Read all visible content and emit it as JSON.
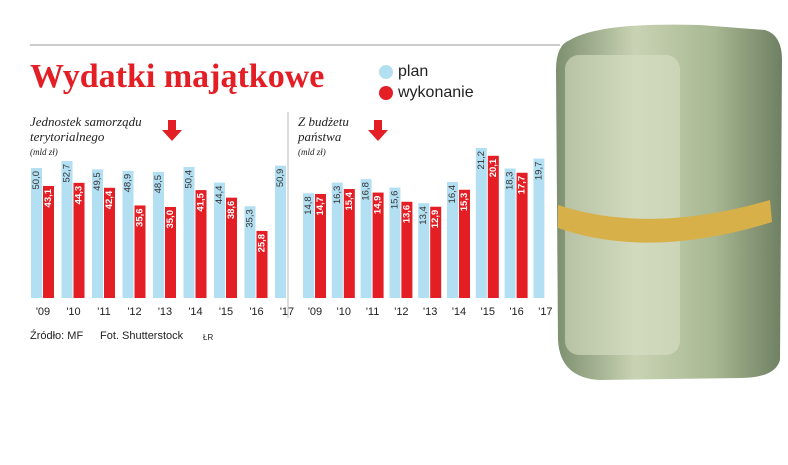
{
  "title": "Wydatki majątkowe",
  "source": "Źródło: MF",
  "photo": "Fot. Shutterstock",
  "signature": "ŁR",
  "chart_data": [
    {
      "type": "bar",
      "subtitle": "Jednostek samorządu terytorialnego",
      "unit": "(mld zł)",
      "categories": [
        "'09",
        "'10",
        "'11",
        "'12",
        "'13",
        "'14",
        "'15",
        "'16",
        "'17"
      ],
      "ylim": [
        0,
        57.7
      ],
      "series": [
        {
          "name": "plan",
          "color": "#b3dff2",
          "values": [
            50.0,
            52.7,
            49.5,
            48.9,
            48.5,
            50.4,
            44.4,
            35.3,
            50.9
          ],
          "value_labels": [
            "50,0",
            "52,7",
            "49,5",
            "48,9",
            "48,5",
            "50,4",
            "44,4",
            "35,3",
            "50,9"
          ]
        },
        {
          "name": "wykonanie",
          "color": "#e31e24",
          "values": [
            43.1,
            44.3,
            42.4,
            35.6,
            35.0,
            41.5,
            38.6,
            25.8,
            null
          ],
          "value_labels": [
            "43,1",
            "44,3",
            "42,4",
            "35,6",
            "35,0",
            "41,5",
            "38,6",
            "25,8",
            null
          ]
        }
      ]
    },
    {
      "type": "bar",
      "subtitle": "Z budżetu państwa",
      "unit": "(mld zł)",
      "categories": [
        "'09",
        "'10",
        "'11",
        "'12",
        "'13",
        "'14",
        "'15",
        "'16",
        "'17"
      ],
      "ylim": [
        0,
        21.2
      ],
      "series": [
        {
          "name": "plan",
          "color": "#b3dff2",
          "values": [
            14.8,
            16.3,
            16.8,
            15.6,
            13.4,
            16.4,
            21.2,
            18.3,
            19.7
          ],
          "value_labels": [
            "14,8",
            "16,3",
            "16,8",
            "15,6",
            "13,4",
            "16,4",
            "21,2",
            "18,3",
            "19,7"
          ]
        },
        {
          "name": "wykonanie",
          "color": "#e31e24",
          "values": [
            14.7,
            15.4,
            14.9,
            13.6,
            12.9,
            15.3,
            20.1,
            17.7,
            null
          ],
          "value_labels": [
            "14,7",
            "15,4",
            "14,9",
            "13,6",
            "12,9",
            "15,3",
            "20,1",
            "17,7",
            null
          ]
        }
      ]
    }
  ]
}
